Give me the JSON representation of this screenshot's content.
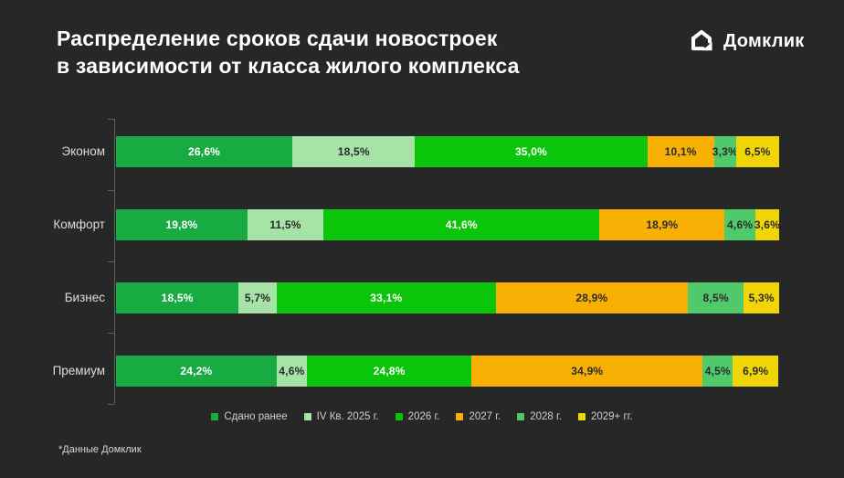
{
  "title": {
    "line1": "Распределение сроков сдачи новостроек",
    "line2": "в зависимости от класса жилого комплекса"
  },
  "logo": {
    "text": "Домклик"
  },
  "footnote": "*Данные Домклик",
  "colors": {
    "background": "#272727",
    "title_text": "#ffffff",
    "axis": "#5e5e5e",
    "category_label": "#dcdcdc",
    "legend_label": "#cfcfcf"
  },
  "chart_data": {
    "type": "bar",
    "orientation": "horizontal",
    "stacked": true,
    "grid": false,
    "legend_position": "bottom",
    "xlim": [
      0,
      100
    ],
    "categories": [
      "Эконом",
      "Комфорт",
      "Бизнес",
      "Премиум"
    ],
    "series": [
      {
        "name": "Сдано ранее",
        "color": "#18ab41",
        "text_color": "#ffffff",
        "values": [
          26.6,
          19.8,
          18.5,
          24.2
        ]
      },
      {
        "name": "IV Кв. 2025 г.",
        "color": "#a7e2a7",
        "text_color": "#2b2b2b",
        "values": [
          18.5,
          11.5,
          5.7,
          4.6
        ]
      },
      {
        "name": "2026 г.",
        "color": "#0bc50b",
        "text_color": "#ffffff",
        "values": [
          35.0,
          41.6,
          33.1,
          24.8
        ]
      },
      {
        "name": "2027 г.",
        "color": "#f9b005",
        "text_color": "#2b2b2b",
        "values": [
          10.1,
          18.9,
          28.9,
          34.9
        ]
      },
      {
        "name": "2028 г.",
        "color": "#4fc969",
        "text_color": "#2b2b2b",
        "values": [
          3.3,
          4.6,
          8.5,
          4.5
        ]
      },
      {
        "name": "2029+ гг.",
        "color": "#f1d607",
        "text_color": "#2b2b2b",
        "values": [
          6.5,
          3.6,
          5.3,
          6.9
        ]
      }
    ]
  }
}
